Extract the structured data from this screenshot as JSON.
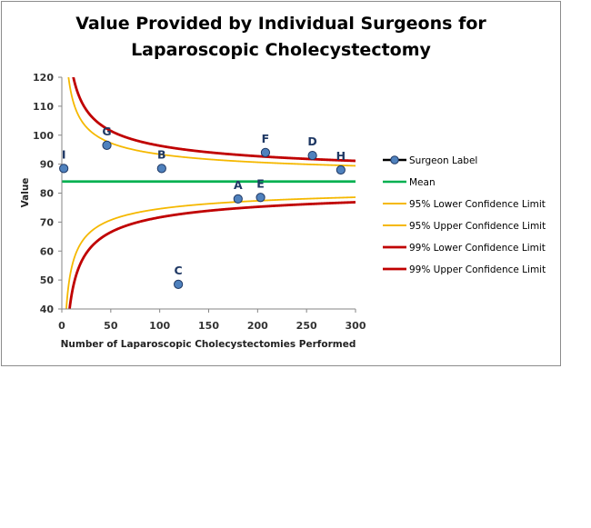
{
  "chart_data": {
    "type": "scatter",
    "title": "Value Provided by Individual Surgeons for Laparoscopic Cholecystectomy",
    "title_lines": [
      "Value Provided by Individual Surgeons for",
      "Laparoscopic Cholecystectomy"
    ],
    "xlabel": "Number of Laparoscopic  Cholecystectomies Performed",
    "ylabel": "Value",
    "xlim": [
      0,
      300
    ],
    "ylim": [
      40,
      120
    ],
    "x_ticks": [
      0,
      50,
      100,
      150,
      200,
      250,
      300
    ],
    "y_ticks": [
      40,
      50,
      60,
      70,
      80,
      90,
      100,
      110,
      120
    ],
    "grid": false,
    "legend_position": "right",
    "mean": 84,
    "surgeons": [
      {
        "label": "I",
        "x": 2,
        "y": 88.5
      },
      {
        "label": "G",
        "x": 46,
        "y": 96.5
      },
      {
        "label": "B",
        "x": 102,
        "y": 88.5
      },
      {
        "label": "C",
        "x": 119,
        "y": 48.5
      },
      {
        "label": "A",
        "x": 180,
        "y": 78
      },
      {
        "label": "E",
        "x": 203,
        "y": 78.5
      },
      {
        "label": "F",
        "x": 208,
        "y": 94
      },
      {
        "label": "D",
        "x": 256,
        "y": 93
      },
      {
        "label": "H",
        "x": 285,
        "y": 88
      }
    ],
    "series": [
      {
        "name": "Surgeon Label",
        "color": "#4f81bd"
      },
      {
        "name": "Mean",
        "color": "#00b050"
      },
      {
        "name": "95% Lower Confidence Limit",
        "color": "#f5b800"
      },
      {
        "name": "95% Upper Confidence Limit",
        "color": "#f5b800"
      },
      {
        "name": "99% Lower Confidence Limit",
        "color": "#c00000"
      },
      {
        "name": "99% Upper Confidence Limit",
        "color": "#c00000"
      }
    ],
    "confidence_z": {
      "ci95": 1.96,
      "ci99": 2.576
    }
  }
}
